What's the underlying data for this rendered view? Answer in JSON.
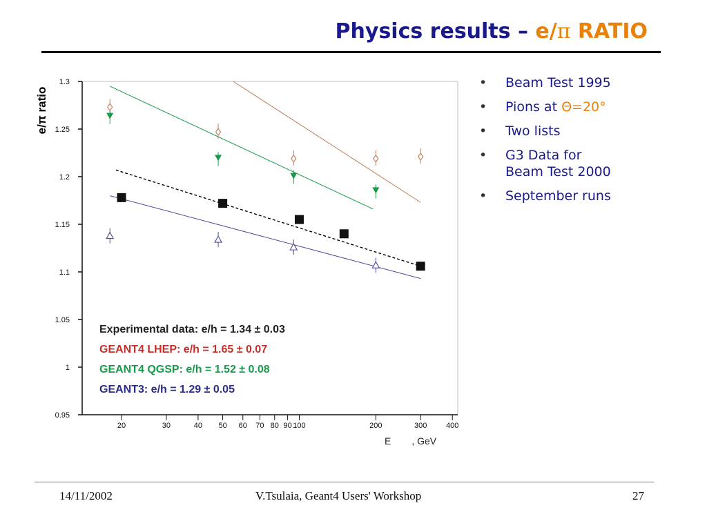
{
  "slide": {
    "title_main": "Physics results – ",
    "title_accent_e": "e/",
    "title_accent_pi": "π",
    "title_accent_ratio": " RATIO",
    "footer_date": "14/11/2002",
    "footer_center": "V.Tsulaia, Geant4 Users' Workshop",
    "footer_page": "27",
    "colors": {
      "title": "#1a1a8c",
      "accent": "#e8820a",
      "exp": "#000000",
      "lhep": "#c62e2a",
      "qgsp": "#199a4a",
      "g3": "#2b2b8a"
    }
  },
  "bullets": {
    "item1": "Beam Test 1995",
    "item2_text": "Pions at ",
    "item2_accent": "Θ=20°",
    "item3": "Two lists",
    "item4_line1": "G3 Data for",
    "item4_line2": "Beam Test 2000",
    "item5": "September runs"
  },
  "chart_data": {
    "type": "scatter",
    "ylabel": "e/π ratio",
    "xlabel": "E",
    "xlabel_unit": ", GeV",
    "xscale": "log",
    "xlim": [
      14,
      420
    ],
    "ylim": [
      0.95,
      1.3
    ],
    "yticks": [
      "0.95",
      "1",
      "1.05",
      "1.1",
      "1.15",
      "1.2",
      "1.25",
      "1.3"
    ],
    "ytick_values": [
      0.95,
      1.0,
      1.05,
      1.1,
      1.15,
      1.2,
      1.25,
      1.3
    ],
    "xticks": [
      "20",
      "30",
      "40",
      "50",
      "60",
      "70",
      "80",
      "90",
      "100",
      "200",
      "300",
      "400"
    ],
    "xtick_values": [
      20,
      30,
      40,
      50,
      60,
      70,
      80,
      90,
      100,
      200,
      300,
      400
    ],
    "series": [
      {
        "key": "exp",
        "marker": "filled-square",
        "color": "#000000",
        "points": [
          [
            20,
            1.178
          ],
          [
            50,
            1.172
          ],
          [
            100,
            1.155
          ],
          [
            150,
            1.14
          ],
          [
            300,
            1.106
          ]
        ],
        "fit": {
          "style": "dashed",
          "from": [
            19,
            1.207
          ],
          "to": [
            300,
            1.106
          ]
        }
      },
      {
        "key": "lhep",
        "marker": "open-diamond",
        "color": "#c0785a",
        "points": [
          [
            18,
            1.273
          ],
          [
            48,
            1.247
          ],
          [
            95,
            1.219
          ],
          [
            200,
            1.219
          ],
          [
            300,
            1.221
          ]
        ],
        "fit": {
          "style": "solid",
          "from": [
            55,
            1.3
          ],
          "to": [
            300,
            1.173
          ]
        }
      },
      {
        "key": "qgsp",
        "marker": "filled-triangle-down",
        "color": "#199a4a",
        "points": [
          [
            18,
            1.264
          ],
          [
            48,
            1.22
          ],
          [
            95,
            1.201
          ],
          [
            200,
            1.186
          ]
        ],
        "fit": {
          "style": "solid",
          "from": [
            18,
            1.295
          ],
          "to": [
            195,
            1.166
          ]
        }
      },
      {
        "key": "g3",
        "marker": "open-triangle-up",
        "color": "#4a4a9a",
        "points": [
          [
            18,
            1.138
          ],
          [
            48,
            1.134
          ],
          [
            95,
            1.126
          ],
          [
            200,
            1.107
          ]
        ],
        "fit": {
          "style": "solid",
          "from": [
            18,
            1.18
          ],
          "to": [
            300,
            1.093
          ]
        }
      }
    ],
    "legend": [
      {
        "label": "Experimental data: e/h = 1.34 ± 0.03",
        "color": "#222222"
      },
      {
        "label": "GEANT4 LHEP: e/h = 1.65 ± 0.07",
        "color": "#c62e2a"
      },
      {
        "label": "GEANT4 QGSP: e/h = 1.52 ± 0.08",
        "color": "#199a4a"
      },
      {
        "label": "GEANT3: e/h = 1.29 ± 0.05",
        "color": "#2b2b8a"
      }
    ],
    "legend_placement": "bottom-left",
    "grid": false
  }
}
